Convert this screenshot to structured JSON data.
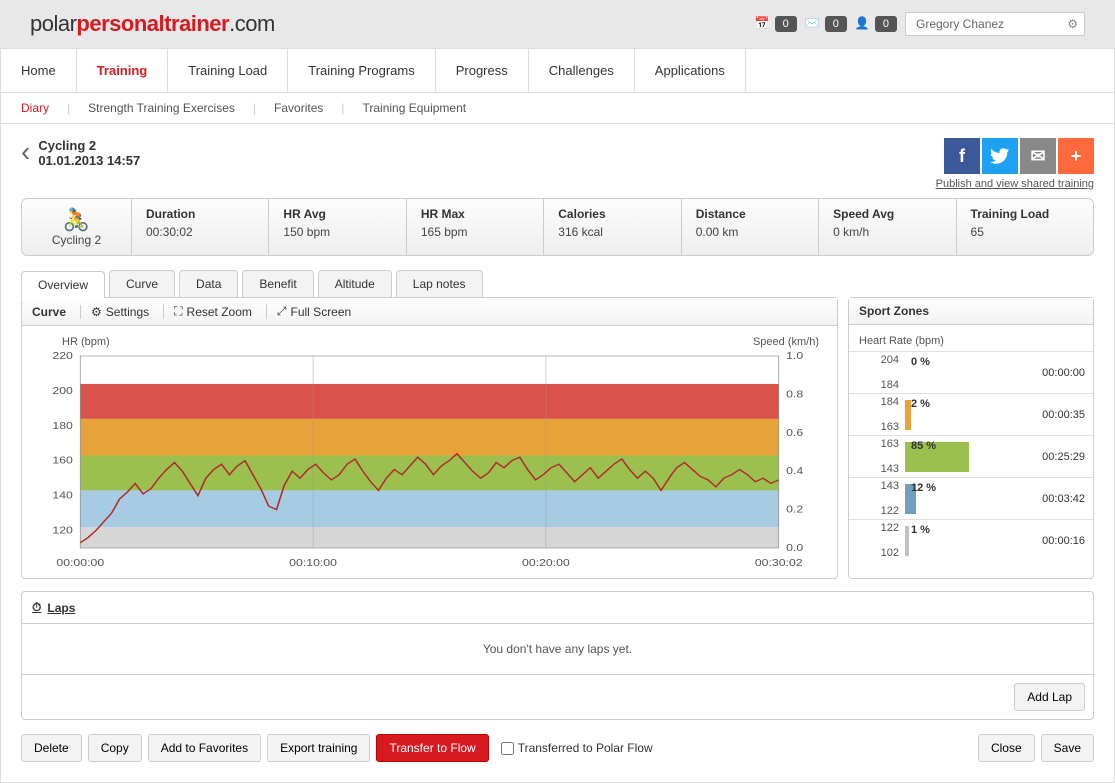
{
  "logo": {
    "p1": "polar",
    "p2": "personaltrainer",
    "p3": ".com"
  },
  "top": {
    "notif1_count": "0",
    "notif2_count": "0",
    "notif3_count": "0",
    "username": "Gregory Chanez"
  },
  "nav": {
    "items": [
      "Home",
      "Training",
      "Training Load",
      "Training Programs",
      "Progress",
      "Challenges",
      "Applications"
    ],
    "active": 1
  },
  "subnav": {
    "items": [
      "Diary",
      "Strength Training Exercises",
      "Favorites",
      "Training Equipment"
    ],
    "active": 0
  },
  "title": {
    "name": "Cycling 2",
    "date": "01.01.2013 14:57"
  },
  "share_link": "Publish and view shared training",
  "stats": {
    "sport_label": "Cycling 2",
    "items": [
      {
        "label": "Duration",
        "value": "00:30:02"
      },
      {
        "label": "HR Avg",
        "value": "150  bpm"
      },
      {
        "label": "HR Max",
        "value": "165  bpm"
      },
      {
        "label": "Calories",
        "value": "316  kcal"
      },
      {
        "label": "Distance",
        "value": "0.00  km"
      },
      {
        "label": "Speed Avg",
        "value": "0  km/h"
      },
      {
        "label": "Training Load",
        "value": "65"
      }
    ]
  },
  "tabs2": [
    "Overview",
    "Curve",
    "Data",
    "Benefit",
    "Altitude",
    "Lap notes"
  ],
  "curve": {
    "title": "Curve",
    "settings": "Settings",
    "reset_zoom": "Reset Zoom",
    "full_screen": "Full Screen",
    "y_left_label": "HR (bpm)",
    "y_right_label": "Speed (km/h)",
    "y_left_ticks": [
      120,
      140,
      160,
      180,
      200,
      220
    ],
    "y_left_min": 110,
    "y_left_max": 220,
    "y_right_ticks": [
      0.0,
      0.2,
      0.4,
      0.6,
      0.8,
      1.0
    ],
    "x_ticks": [
      "00:00:00",
      "00:10:00",
      "00:20:00",
      "00:30:02"
    ],
    "zone_bands": [
      {
        "lo": 110,
        "hi": 122,
        "color": "#d6d6d6"
      },
      {
        "lo": 122,
        "hi": 143,
        "color": "#a7cbe2"
      },
      {
        "lo": 143,
        "hi": 163,
        "color": "#9bc04f"
      },
      {
        "lo": 163,
        "hi": 184,
        "color": "#e8a23a"
      },
      {
        "lo": 184,
        "hi": 204,
        "color": "#d9534a"
      }
    ],
    "line_color": "#b02a2a",
    "line_width": 1.3,
    "hr_series": [
      113,
      116,
      120,
      125,
      130,
      138,
      142,
      147,
      141,
      144,
      150,
      155,
      159,
      154,
      147,
      140,
      150,
      155,
      158,
      152,
      157,
      160,
      152,
      144,
      134,
      132,
      146,
      154,
      150,
      155,
      158,
      153,
      149,
      152,
      158,
      161,
      154,
      148,
      143,
      150,
      155,
      152,
      157,
      162,
      158,
      152,
      157,
      160,
      164,
      159,
      154,
      150,
      153,
      159,
      156,
      160,
      162,
      155,
      149,
      152,
      156,
      158,
      153,
      148,
      152,
      156,
      150,
      154,
      158,
      161,
      155,
      150,
      154,
      150,
      143,
      150,
      156,
      159,
      155,
      151,
      149,
      145,
      150,
      152,
      155,
      152,
      148,
      150,
      147,
      149
    ]
  },
  "zones": {
    "title": "Sport Zones",
    "subtitle": "Heart Rate (bpm)",
    "bounds": [
      204,
      184,
      163,
      143,
      122,
      102
    ],
    "rows": [
      {
        "pct": "0 %",
        "time": "00:00:00",
        "width": 0,
        "color": "#d9534a"
      },
      {
        "pct": "2 %",
        "time": "00:00:35",
        "width": 5,
        "color": "#e8a23a"
      },
      {
        "pct": "85 %",
        "time": "00:25:29",
        "width": 52,
        "color": "#9bc04f"
      },
      {
        "pct": "12 %",
        "time": "00:03:42",
        "width": 9,
        "color": "#6fa0c0"
      },
      {
        "pct": "1 %",
        "time": "00:00:16",
        "width": 3,
        "color": "#c0c0c0"
      }
    ]
  },
  "laps": {
    "title": "Laps",
    "empty": "You don't have any laps yet.",
    "add": "Add Lap"
  },
  "footer": {
    "delete": "Delete",
    "copy": "Copy",
    "fav": "Add to Favorites",
    "export": "Export training",
    "transfer": "Transfer to Flow",
    "transferred": "Transferred to Polar Flow",
    "close": "Close",
    "save": "Save"
  }
}
